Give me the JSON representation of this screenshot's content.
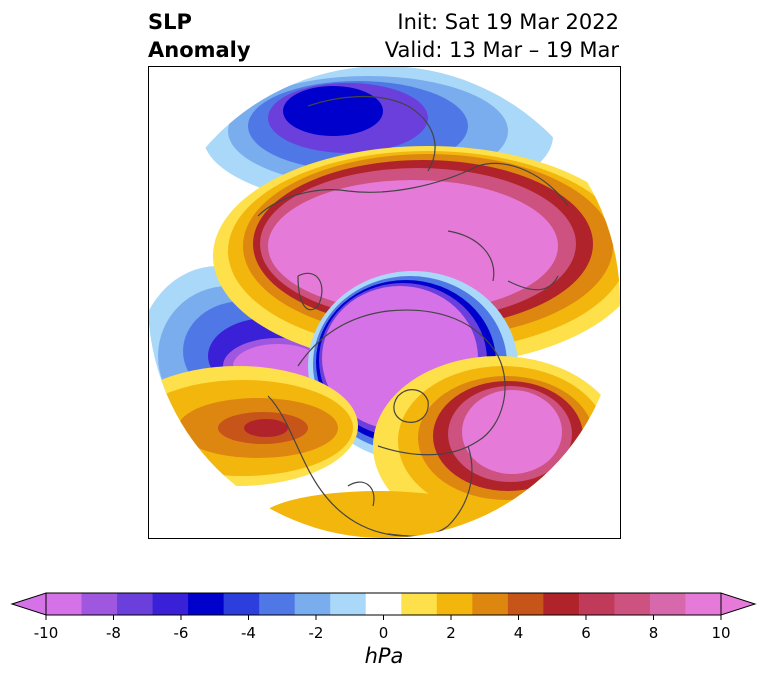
{
  "title": {
    "left_line1": "SLP",
    "left_line2": "Anomaly",
    "init": "Init: Sat 19 Mar 2022",
    "valid": "Valid: 13 Mar – 19 Mar"
  },
  "colorbar": {
    "unit": "hPa",
    "ticks": [
      "-10",
      "-8",
      "-6",
      "-4",
      "-2",
      "0",
      "2",
      "4",
      "6",
      "8",
      "10"
    ],
    "colors": [
      "#d572e8",
      "#a057e0",
      "#6a3fdb",
      "#3a20d6",
      "#0000cd",
      "#2c3edc",
      "#4f78e6",
      "#79adee",
      "#aad8f8",
      "#ffffff",
      "#fde04a",
      "#f3b60c",
      "#de8710",
      "#c75519",
      "#b0232a",
      "#c03a5a",
      "#cd5280",
      "#d868ac",
      "#e67ad8"
    ],
    "extend_min": "#d572e8",
    "extend_max": "#e67ad8"
  },
  "map": {
    "projection": "north-polar-stereographic",
    "anomaly_regions": [
      "Negative anomaly over the Arctic Ocean / northern Canada",
      "Positive anomaly over Siberia and northern Asia",
      "Negative anomaly over the North Pacific",
      "Positive anomaly over the North Atlantic",
      "Positive anomaly over the Gulf of Alaska region",
      "Negative anomaly over Scandinavia"
    ]
  }
}
